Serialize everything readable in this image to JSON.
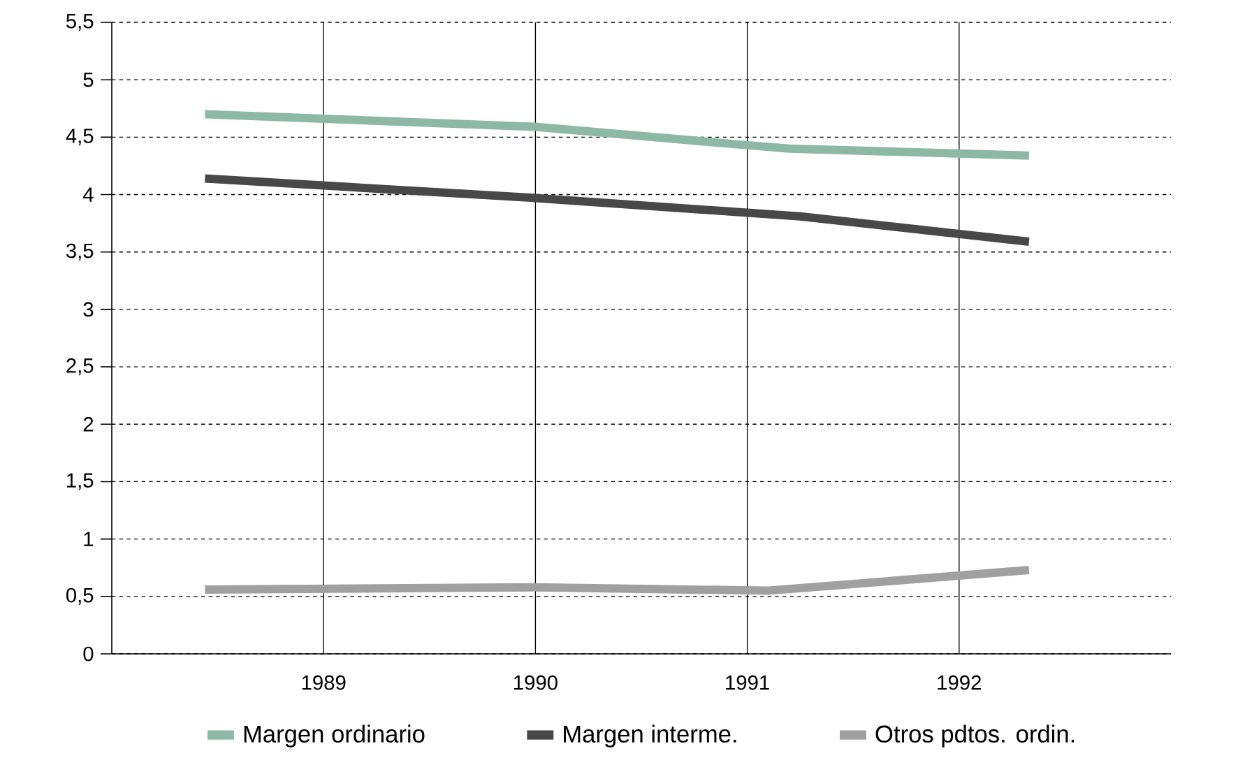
{
  "chart_data": {
    "type": "line",
    "xlim": [
      1988,
      1993
    ],
    "xticks": [
      1989,
      1990,
      1991,
      1992
    ],
    "ylim": [
      0,
      5.5
    ],
    "yticks": [
      0,
      {
        "value": 0.5,
        "label": "0,5"
      },
      1,
      {
        "value": 1.5,
        "label": "1,5"
      },
      2,
      {
        "value": 2.5,
        "label": "2,5"
      },
      3,
      {
        "value": 3.5,
        "label": "3,5"
      },
      4,
      {
        "value": 4.5,
        "label": "4,5"
      },
      5,
      {
        "value": 5.5,
        "label": "5,5"
      }
    ],
    "grid": true,
    "legend": "bottom",
    "marker": "none",
    "line_style": "solid",
    "series": [
      {
        "name": "Margen ordinario",
        "color": "#8db8a6",
        "x": [
          1988.44,
          1990.0,
          1991.0,
          1991.2,
          1992.33
        ],
        "values": [
          4.7,
          4.59,
          4.43,
          4.4,
          4.34
        ]
      },
      {
        "name": "Margen interme.",
        "color": "#484848",
        "x": [
          1988.44,
          1990.0,
          1991.25,
          1992.33
        ],
        "values": [
          4.14,
          3.97,
          3.81,
          3.59
        ]
      },
      {
        "name": "Otros pdtos. ordin.",
        "color": "#a0a0a0",
        "x": [
          1988.44,
          1990.0,
          1991.1,
          1992.33
        ],
        "values": [
          0.56,
          0.58,
          0.55,
          0.73
        ]
      }
    ]
  }
}
